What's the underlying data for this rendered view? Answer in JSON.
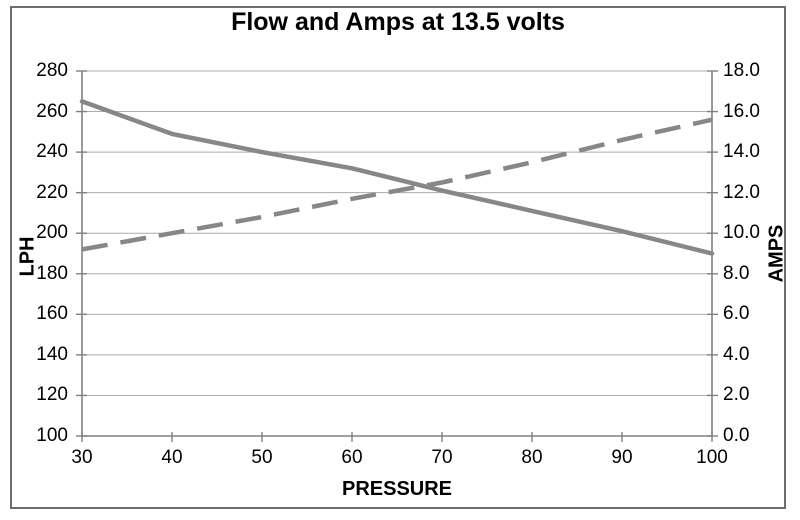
{
  "chart_data": {
    "type": "line",
    "title": "Flow and Amps at 13.5 volts",
    "xlabel": "PRESSURE",
    "ylabel_left": "LPH",
    "ylabel_right": "AMPS",
    "x": [
      30,
      40,
      50,
      60,
      70,
      80,
      90,
      100
    ],
    "x_range": [
      30,
      100
    ],
    "y_left_range": [
      100,
      280
    ],
    "y_right_range": [
      0,
      18
    ],
    "x_ticks": [
      "30",
      "40",
      "50",
      "60",
      "70",
      "80",
      "90",
      "100"
    ],
    "y_left_ticks": [
      "280",
      "260",
      "240",
      "220",
      "200",
      "180",
      "160",
      "140",
      "120",
      "100"
    ],
    "y_right_ticks": [
      "18.0",
      "16.0",
      "14.0",
      "12.0",
      "10.0",
      "8.0",
      "6.0",
      "4.0",
      "2.0",
      "0.0"
    ],
    "grid": true,
    "legend": "none",
    "series": [
      {
        "name": "Flow LPH (left axis)",
        "axis": "left",
        "line_style": "solid",
        "color": "#878787",
        "values": [
          265,
          249,
          240,
          232,
          221,
          211,
          201,
          190
        ]
      },
      {
        "name": "AMPS (right axis)",
        "axis": "right",
        "line_style": "dashed",
        "color": "#878787",
        "values": [
          9.2,
          10.0,
          10.8,
          11.7,
          12.5,
          13.5,
          14.6,
          15.6
        ]
      }
    ],
    "colors": {
      "gridline": "#ababab",
      "axis": "#808080",
      "tick_mark": "#808080",
      "text": "#000000",
      "frame_border": "#6e6e6e",
      "background": "#ffffff"
    }
  }
}
